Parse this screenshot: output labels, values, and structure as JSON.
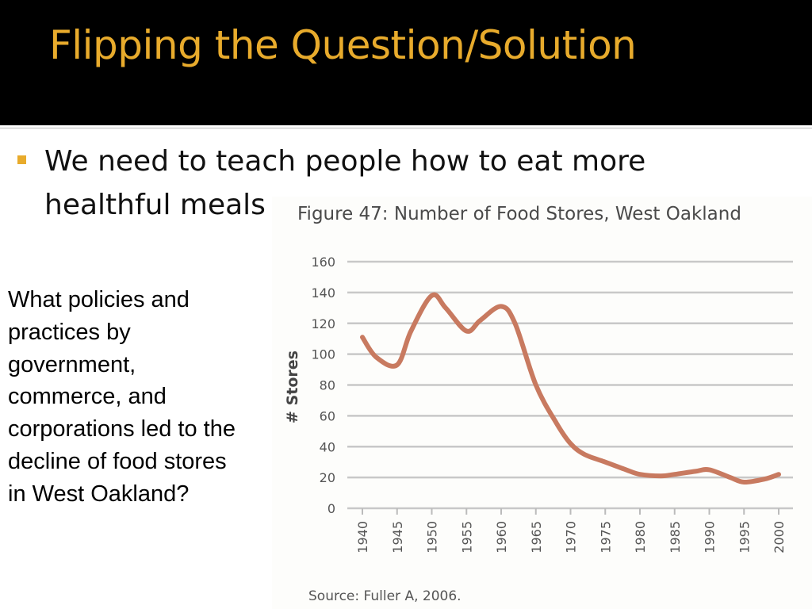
{
  "slide": {
    "title": "Flipping the Question/Solution",
    "bullet": "We need to teach people how to eat more healthful meals",
    "question": "What policies and practices by government, commerce, and corporations led to the decline of food stores in West Oakland?"
  },
  "colors": {
    "title_bar": "#000000",
    "title_text": "#e8ab2c",
    "bullet_marker": "#e8ab2c",
    "series_line": "#c87a60"
  },
  "chart_data": {
    "type": "line",
    "title": "Figure 47: Number of Food Stores, West Oakland",
    "xlabel": "",
    "ylabel": "# Stores",
    "source": "Source: Fuller A, 2006.",
    "x_ticks": [
      "1940",
      "1945",
      "1950",
      "1955",
      "1960",
      "1965",
      "1970",
      "1975",
      "1980",
      "1985",
      "1990",
      "1995",
      "2000"
    ],
    "y_ticks": [
      "0",
      "20",
      "40",
      "60",
      "80",
      "100",
      "120",
      "140",
      "160"
    ],
    "ylim": [
      0,
      160
    ],
    "xlim": [
      1940,
      2000
    ],
    "grid": true,
    "series": [
      {
        "name": "# Stores",
        "x": [
          1940,
          1942,
          1945,
          1947,
          1950,
          1952,
          1955,
          1957,
          1960,
          1962,
          1965,
          1968,
          1970,
          1972,
          1975,
          1978,
          1980,
          1983,
          1985,
          1988,
          1990,
          1993,
          1995,
          1998,
          2000
        ],
        "y": [
          111,
          98,
          93,
          115,
          138,
          130,
          115,
          122,
          131,
          120,
          80,
          55,
          42,
          35,
          30,
          25,
          22,
          21,
          22,
          24,
          25,
          20,
          17,
          19,
          22
        ]
      }
    ]
  }
}
